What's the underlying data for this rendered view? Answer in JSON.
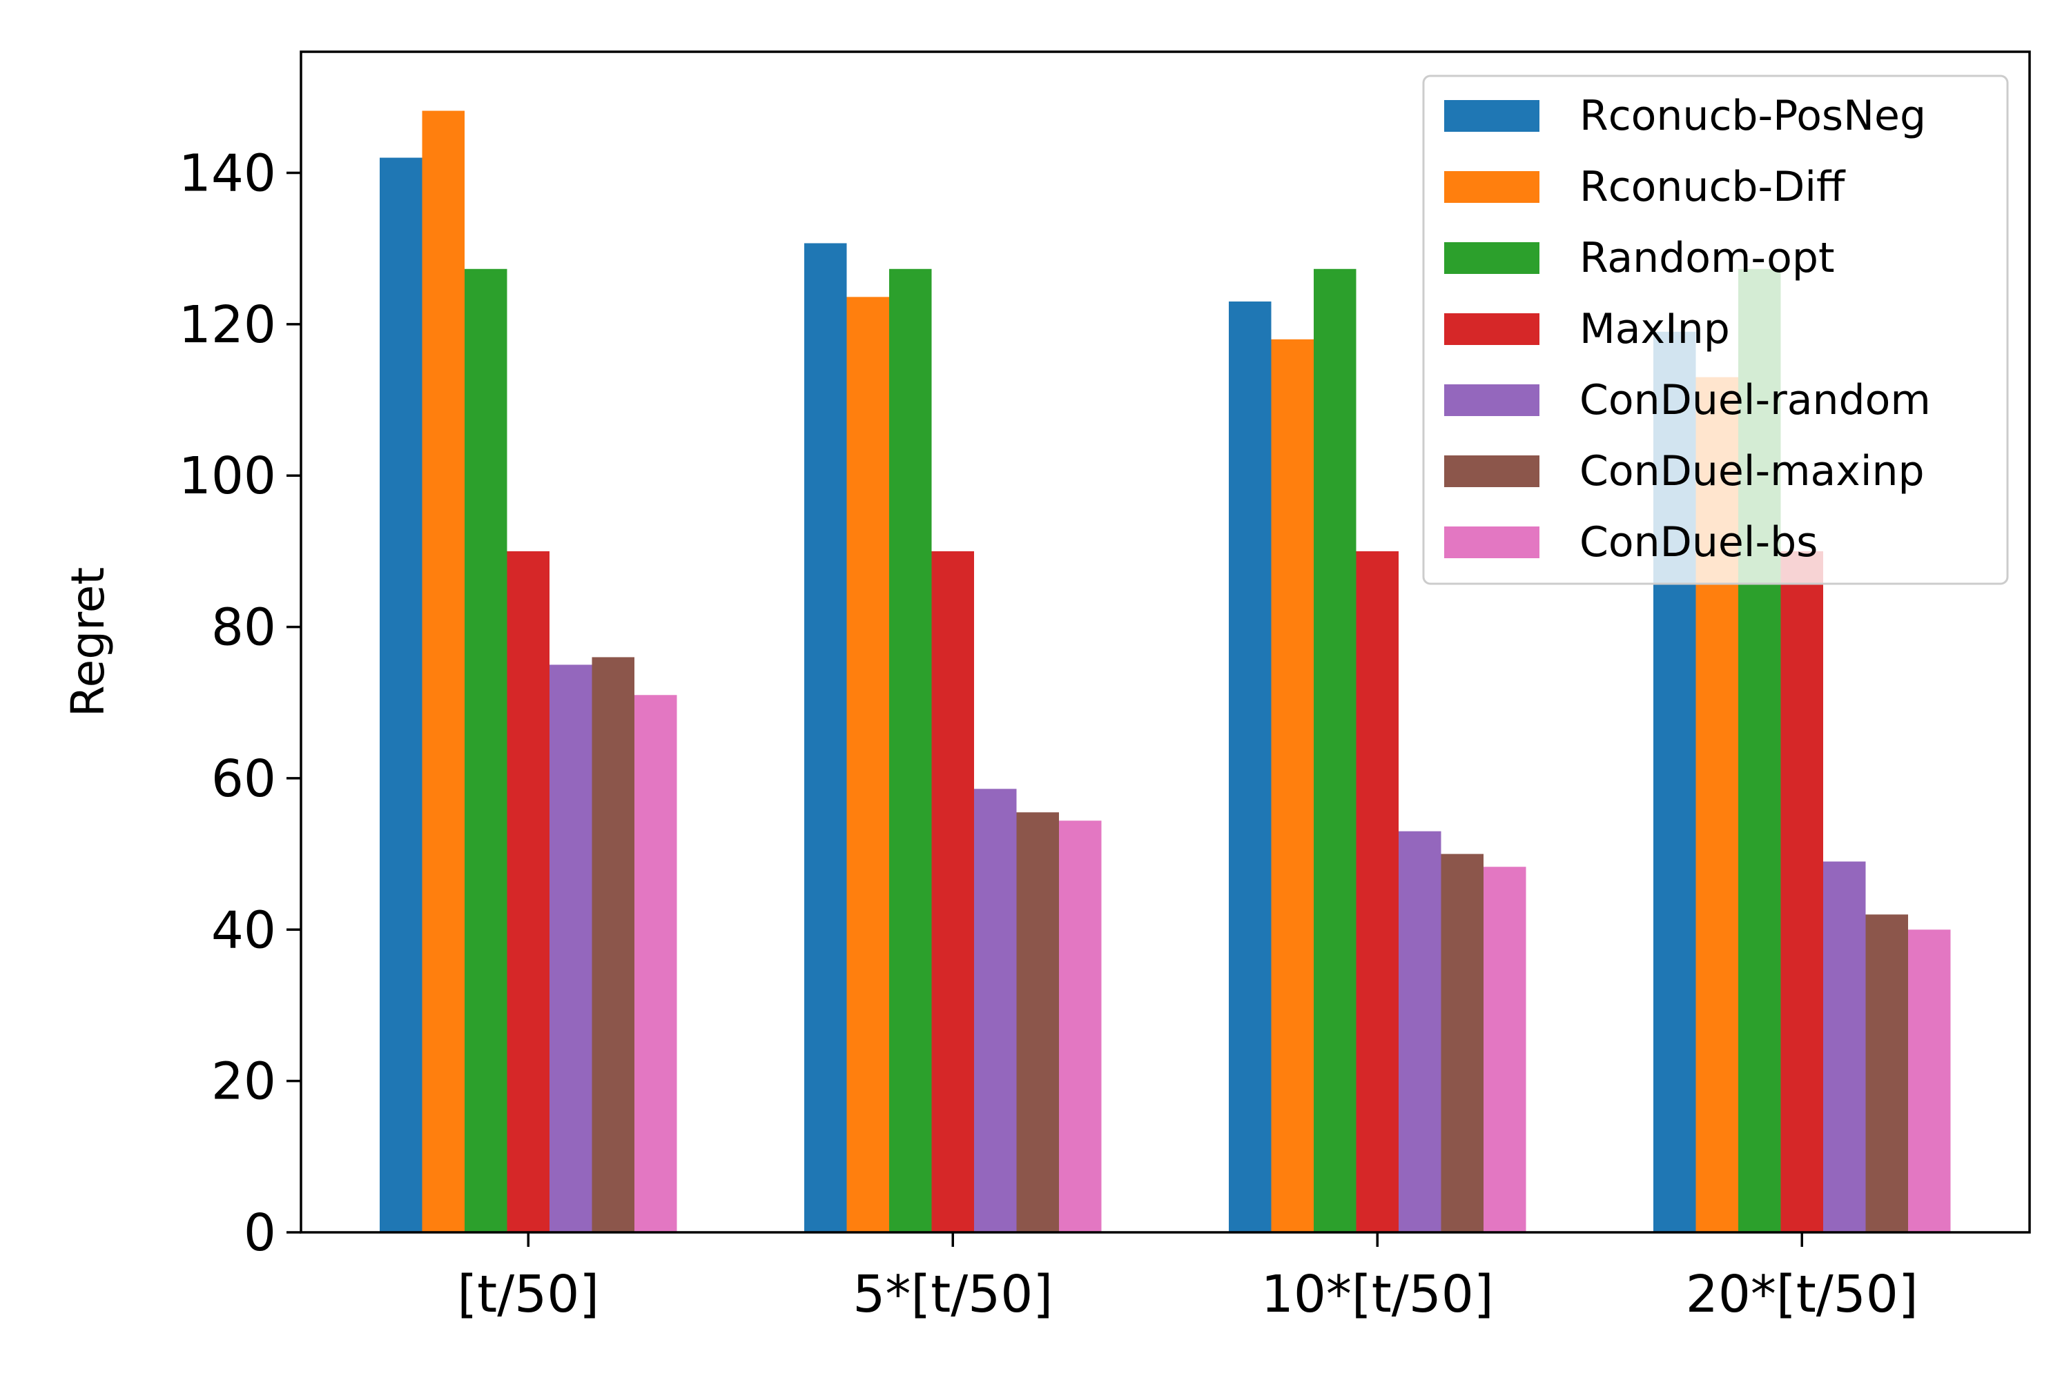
{
  "chart_data": {
    "type": "bar",
    "title": "",
    "xlabel": "",
    "ylabel": "Regret",
    "ylim": [
      0,
      156
    ],
    "yticks": [
      0,
      20,
      40,
      60,
      80,
      100,
      120,
      140
    ],
    "categories": [
      "[t/50]",
      "5*[t/50]",
      "10*[t/50]",
      "20*[t/50]"
    ],
    "legend_position": "top-right",
    "grid": false,
    "series": [
      {
        "name": "Rconucb-PosNeg",
        "color": "#1f77b4",
        "values": [
          142,
          130.7,
          123,
          119
        ]
      },
      {
        "name": "Rconucb-Diff",
        "color": "#ff7f0e",
        "values": [
          148.2,
          123.6,
          118,
          113
        ]
      },
      {
        "name": "Random-opt",
        "color": "#2ca02c",
        "values": [
          127.3,
          127.3,
          127.3,
          127.3
        ]
      },
      {
        "name": "MaxInp",
        "color": "#d62728",
        "values": [
          90,
          90,
          90,
          90
        ]
      },
      {
        "name": "ConDuel-random",
        "color": "#9467bd",
        "values": [
          75,
          58.6,
          53,
          49
        ]
      },
      {
        "name": "ConDuel-maxinp",
        "color": "#8c564b",
        "values": [
          76,
          55.5,
          50,
          42
        ]
      },
      {
        "name": "ConDuel-bs",
        "color": "#e377c2",
        "values": [
          71,
          54.4,
          48.3,
          40
        ]
      }
    ]
  }
}
